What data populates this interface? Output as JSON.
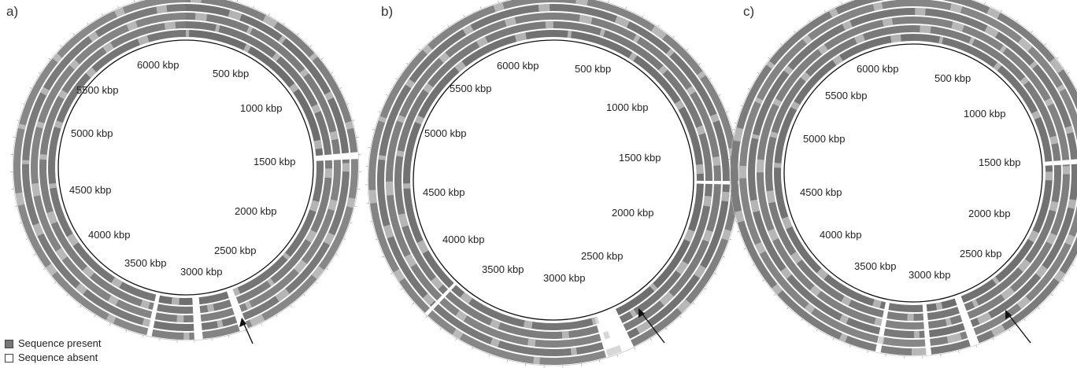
{
  "panels": [
    {
      "letter": "a)",
      "labels": [
        "6000 kbp",
        "500 kbp",
        "5500 kbp",
        "1000 kbp",
        "5000 kbp",
        "1500 kbp",
        "4500 kbp",
        "2000 kbp",
        "4000 kbp",
        "2500 kbp",
        "3500 kbp",
        "3000 kbp"
      ],
      "rings": 5
    },
    {
      "letter": "b)",
      "labels": [
        "6000 kbp",
        "500 kbp",
        "5500 kbp",
        "1000 kbp",
        "5000 kbp",
        "1500 kbp",
        "4500 kbp",
        "2000 kbp",
        "4000 kbp",
        "2500 kbp",
        "3500 kbp",
        "3000 kbp"
      ],
      "rings": 5
    },
    {
      "letter": "c)",
      "labels": [
        "6000 kbp",
        "500 kbp",
        "5500 kbp",
        "1000 kbp",
        "5000 kbp",
        "1500 kbp",
        "4500 kbp",
        "2000 kbp",
        "4000 kbp",
        "2500 kbp",
        "3500 kbp",
        "3000 kbp"
      ],
      "rings": 6
    }
  ],
  "legend": {
    "present_label": "Sequence present",
    "absent_label": "Sequence absent",
    "present_color": "#777777",
    "absent_color": "#ffffff"
  }
}
